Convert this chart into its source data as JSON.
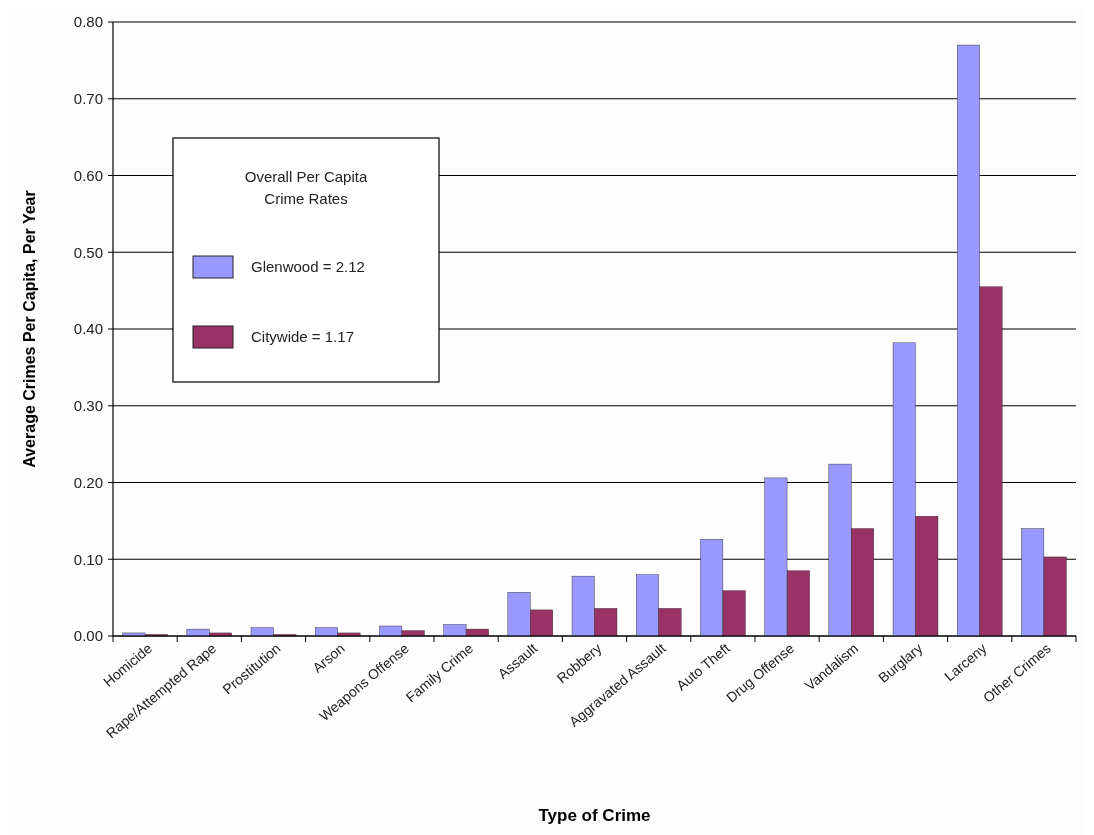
{
  "chart_data": {
    "type": "bar",
    "xlabel": "Type of Crime",
    "ylabel": "Average Crimes Per Capita, Per Year",
    "legend_title": "Overall Per Capita Crime Rates",
    "categories": [
      "Homicide",
      "Rape/Attempted Rape",
      "Prostitution",
      "Arson",
      "Weapons Offense",
      "Family Crime",
      "Assault",
      "Robbery",
      "Aggravated Assault",
      "Auto Theft",
      "Drug Offense",
      "Vandalism",
      "Burglary",
      "Larceny",
      "Other Crimes"
    ],
    "series": [
      {
        "name": "Glenwood = 2.12",
        "color": "#9999ff",
        "values": [
          0.004,
          0.009,
          0.011,
          0.011,
          0.013,
          0.015,
          0.057,
          0.078,
          0.08,
          0.126,
          0.206,
          0.224,
          0.382,
          0.77,
          0.14
        ]
      },
      {
        "name": "Citywide = 1.17",
        "color": "#993366",
        "values": [
          0.002,
          0.004,
          0.002,
          0.004,
          0.007,
          0.009,
          0.034,
          0.036,
          0.036,
          0.059,
          0.085,
          0.14,
          0.156,
          0.455,
          0.103
        ]
      }
    ],
    "ylim": [
      0,
      0.8
    ],
    "yticks": [
      {
        "value": 0,
        "label": "0.00"
      },
      {
        "value": 0.1,
        "label": "0.10"
      },
      {
        "value": 0.2,
        "label": "0.20"
      },
      {
        "value": 0.3,
        "label": "0.30"
      },
      {
        "value": 0.4,
        "label": "0.40"
      },
      {
        "value": 0.5,
        "label": "0.50"
      },
      {
        "value": 0.6,
        "label": "0.60"
      },
      {
        "value": 0.7,
        "label": "0.70"
      },
      {
        "value": 0.8,
        "label": "0.80"
      }
    ],
    "grid": "y",
    "legend": "top left"
  }
}
